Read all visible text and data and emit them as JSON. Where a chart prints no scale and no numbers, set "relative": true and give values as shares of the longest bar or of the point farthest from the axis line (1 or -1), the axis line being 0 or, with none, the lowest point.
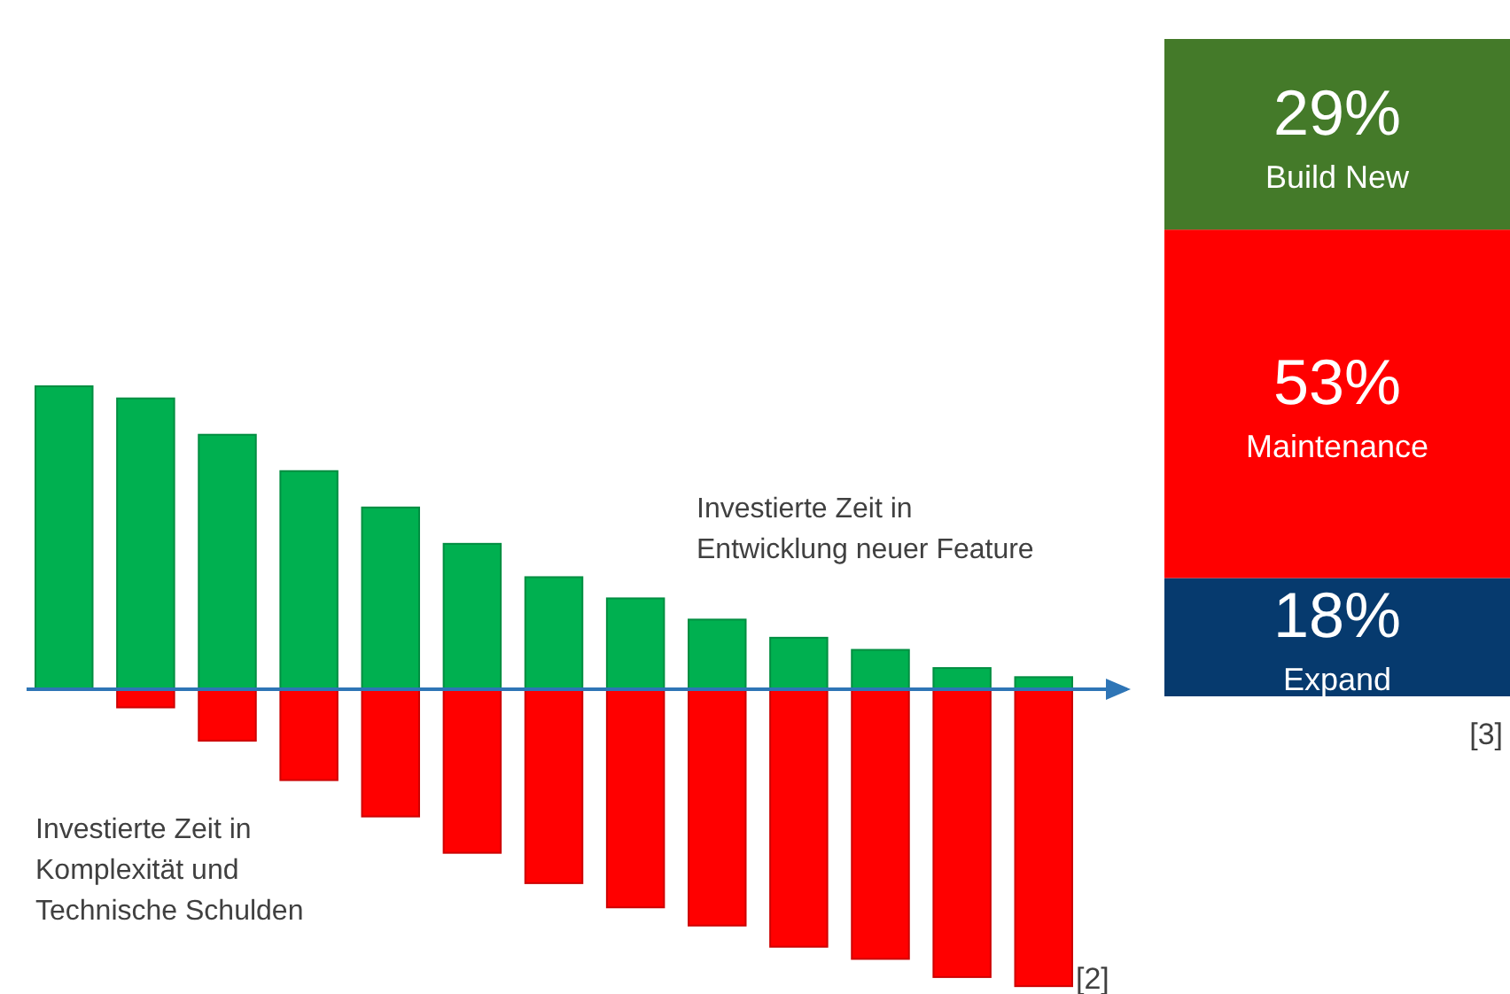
{
  "chart_data": [
    {
      "type": "bar",
      "relative": true,
      "stacked": true,
      "categories": [
        null,
        null,
        null,
        null,
        null,
        null,
        null,
        null,
        null,
        null,
        null,
        null,
        null
      ],
      "series": [
        {
          "color": "#00b050",
          "values": [
            1,
            0.96,
            0.84,
            0.72,
            0.6,
            0.48,
            0.37,
            0.3,
            0.23,
            0.17,
            0.13,
            0.07,
            0.04
          ]
        },
        {
          "color": "#ff0000",
          "values": [
            0,
            -0.06,
            -0.17,
            -0.3,
            -0.42,
            -0.54,
            -0.64,
            -0.72,
            -0.78,
            -0.85,
            -0.89,
            -0.95,
            -0.98
          ]
        }
      ],
      "ref_lines": [
        {
          "axis": "y",
          "value": 0,
          "color": "#2e75b6"
        }
      ],
      "annotations": [
        "Investierte Zeit in\nEntwicklung neuer Feature",
        "Investierte Zeit in\nKomplexität und\nTechnische Schulden",
        "[2]"
      ]
    },
    {
      "type": "bar",
      "stacked": true,
      "categories": [
        null
      ],
      "series": [
        {
          "name": "Expand",
          "color": "#063a6e",
          "values": [
            18
          ],
          "value_labels": [
            "18%"
          ]
        },
        {
          "name": "Maintenance",
          "color": "#ff0000",
          "values": [
            53
          ],
          "value_labels": [
            "53%"
          ]
        },
        {
          "name": "Build New",
          "color": "#447a29",
          "values": [
            29
          ],
          "value_labels": [
            "29%"
          ]
        }
      ],
      "annotations": [
        "[3]"
      ]
    }
  ]
}
